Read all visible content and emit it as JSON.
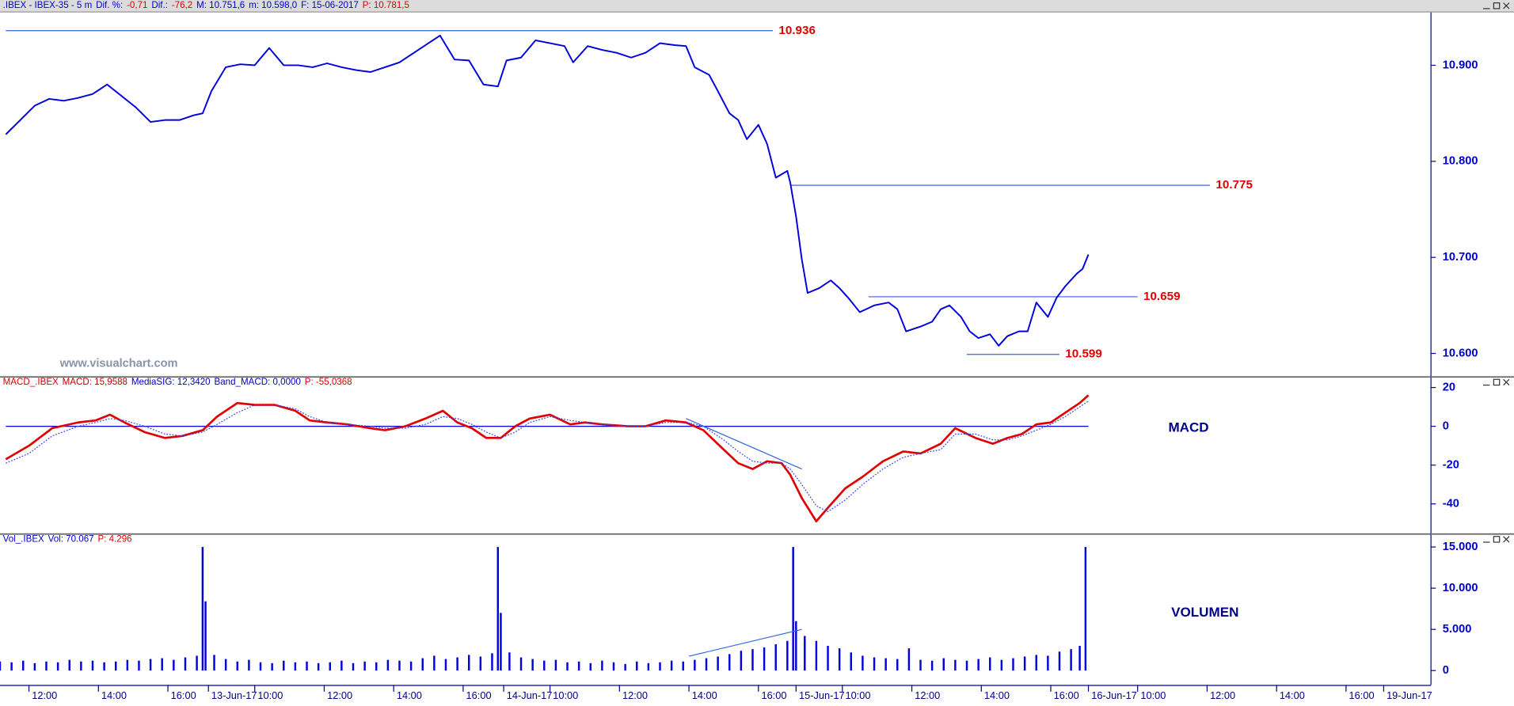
{
  "chart_data": [
    {
      "type": "line",
      "header": [
        {
          "text": ".IBEX - IBEX-35 - 5 m",
          "color": "#0000cc"
        },
        {
          "text": "Dif. %:",
          "color": "#0000cc"
        },
        {
          "text": "-0,71",
          "color": "#e00000"
        },
        {
          "text": "Dif.:",
          "color": "#0000cc"
        },
        {
          "text": "-76,2",
          "color": "#e00000"
        },
        {
          "text": "M: 10.751,6",
          "color": "#0000cc"
        },
        {
          "text": "m: 10.598,0",
          "color": "#0000cc"
        },
        {
          "text": "F: 15-06-2017",
          "color": "#0000cc"
        },
        {
          "text": "P: 10.781,5",
          "color": "#e00000"
        }
      ],
      "watermark": "www.visualchart.com",
      "xlim": [
        0,
        493
      ],
      "ylim": [
        10577,
        10955
      ],
      "yticks": [
        {
          "value": 10600,
          "label": "10.600"
        },
        {
          "value": 10700,
          "label": "10.700"
        },
        {
          "value": 10800,
          "label": "10.800"
        },
        {
          "value": 10900,
          "label": "10.900"
        }
      ],
      "x": [
        2,
        7,
        12,
        17,
        22,
        27,
        32,
        37,
        42,
        47,
        52,
        57,
        62,
        67,
        70,
        73,
        78,
        83,
        88,
        93,
        98,
        103,
        108,
        113,
        118,
        123,
        128,
        133,
        138,
        143,
        148,
        152,
        157,
        162,
        167,
        172,
        175,
        180,
        185,
        190,
        195,
        198,
        203,
        208,
        213,
        218,
        223,
        228,
        233,
        237,
        240,
        245,
        248,
        252,
        255,
        258,
        262,
        265,
        268,
        272,
        273,
        275,
        277,
        279,
        283,
        287,
        290,
        293,
        297,
        302,
        307,
        310,
        313,
        318,
        322,
        325,
        328,
        332,
        335,
        338,
        342,
        345,
        348,
        352,
        355,
        358,
        362,
        365,
        368,
        372,
        374,
        376
      ],
      "series": [
        {
          "color": "#0000dd",
          "values": [
            10828,
            10843,
            10858,
            10865,
            10863,
            10866,
            10870,
            10880,
            10868,
            10856,
            10841,
            10843,
            10843,
            10848,
            10850,
            10873,
            10898,
            10901,
            10900,
            10918,
            10900,
            10900,
            10898,
            10902,
            10898,
            10895,
            10893,
            10898,
            10903,
            10913,
            10923,
            10931,
            10906,
            10905,
            10880,
            10878,
            10905,
            10908,
            10926,
            10923,
            10920,
            10903,
            10920,
            10916,
            10913,
            10908,
            10913,
            10923,
            10921,
            10920,
            10898,
            10890,
            10873,
            10850,
            10843,
            10823,
            10838,
            10818,
            10783,
            10790,
            10778,
            10743,
            10698,
            10663,
            10668,
            10676,
            10668,
            10658,
            10643,
            10650,
            10653,
            10646,
            10623,
            10628,
            10633,
            10646,
            10650,
            10638,
            10623,
            10616,
            10620,
            10608,
            10618,
            10623,
            10623,
            10653,
            10638,
            10658,
            10670,
            10683,
            10688,
            10703
          ]
        }
      ],
      "levels": [
        {
          "value": 10936,
          "label": "10.936",
          "x": [
            2,
            267
          ]
        },
        {
          "value": 10775,
          "label": "10.775",
          "x": [
            273,
            418
          ]
        },
        {
          "value": 10659,
          "label": "10.659",
          "x": [
            300,
            393
          ]
        },
        {
          "value": 10599,
          "label": "10.599",
          "x": [
            334,
            366
          ]
        }
      ],
      "level_color": "#3366dd"
    },
    {
      "type": "macd",
      "header": [
        {
          "text": "MACD_.IBEX",
          "color": "#e00000"
        },
        {
          "text": "MACD: 15,9588",
          "color": "#cc0000"
        },
        {
          "text": "MediaSIG: 12,3420",
          "color": "#0000cc"
        },
        {
          "text": "Band_MACD: 0,0000",
          "color": "#0000cc"
        },
        {
          "text": "P: -55,0368",
          "color": "#e00000"
        }
      ],
      "label": "MACD",
      "xlim": [
        0,
        493
      ],
      "ylim": [
        -55.3,
        24.7
      ],
      "yticks": [
        20,
        0,
        -20,
        -40
      ],
      "reference_line": 0,
      "reference_x": [
        2,
        376
      ],
      "x": [
        2,
        10,
        18,
        27,
        33,
        38,
        43,
        50,
        57,
        63,
        70,
        75,
        82,
        88,
        95,
        102,
        107,
        113,
        120,
        128,
        133,
        140,
        147,
        153,
        158,
        163,
        168,
        173,
        178,
        183,
        190,
        197,
        202,
        208,
        217,
        223,
        230,
        237,
        243,
        250,
        255,
        260,
        265,
        270,
        273,
        277,
        282,
        286,
        292,
        298,
        305,
        312,
        318,
        325,
        330,
        337,
        343,
        348,
        353,
        358,
        363,
        368,
        373,
        376
      ],
      "series": [
        {
          "color": "#e00000",
          "style": "solid",
          "values": [
            -17,
            -10,
            -1,
            2,
            3,
            6,
            2,
            -3,
            -6,
            -5,
            -2,
            5,
            12,
            11,
            11,
            8,
            3,
            2,
            1,
            -1,
            -2,
            0,
            4,
            8,
            2,
            -1,
            -6,
            -6,
            0,
            4,
            6,
            1,
            2,
            1,
            0,
            0,
            3,
            2,
            -2,
            -12,
            -19,
            -22,
            -18,
            -19,
            -25,
            -37,
            -49,
            -42,
            -32,
            -26,
            -18,
            -13,
            -14,
            -9,
            -1,
            -6,
            -9,
            -6,
            -4,
            1,
            2,
            7,
            12,
            16
          ]
        },
        {
          "color": "#3344ff",
          "style": "dotted",
          "values": [
            -19,
            -14,
            -5,
            0,
            2,
            4,
            3,
            0,
            -4,
            -5,
            -3,
            1,
            7,
            11,
            11,
            9,
            5,
            2,
            1,
            0,
            -1,
            -1,
            1,
            5,
            4,
            1,
            -3,
            -6,
            -3,
            2,
            5,
            3,
            2,
            1,
            0,
            0,
            2,
            2,
            0,
            -7,
            -13,
            -18,
            -19,
            -19,
            -22,
            -30,
            -41,
            -44,
            -38,
            -30,
            -22,
            -16,
            -14,
            -12,
            -4,
            -4,
            -7,
            -7,
            -5,
            -2,
            1,
            5,
            10,
            13
          ]
        }
      ],
      "trendline": {
        "x": [
          237,
          277
        ],
        "y": [
          4,
          -22
        ]
      }
    },
    {
      "type": "bar",
      "header": [
        {
          "text": "Vol_.IBEX",
          "color": "#0000cc"
        },
        {
          "text": "Vol: 70.067",
          "color": "#0000cc"
        },
        {
          "text": "P: 4.296",
          "color": "#e00000"
        }
      ],
      "label": "VOLUMEN",
      "color": "#0000dd",
      "xlim": [
        0,
        493
      ],
      "ylim": [
        -1744,
        16395
      ],
      "yticks": [
        {
          "value": 0,
          "label": "0"
        },
        {
          "value": 5000,
          "label": "5.000"
        },
        {
          "value": 10000,
          "label": "10.000"
        },
        {
          "value": 15000,
          "label": "15.000"
        }
      ],
      "xticks": [
        {
          "value": 10,
          "label": "12:00"
        },
        {
          "value": 34,
          "label": "14:00"
        },
        {
          "value": 58,
          "label": "16:00"
        },
        {
          "value": 72,
          "label": "13-Jun-17"
        },
        {
          "value": 88,
          "label": "10:00"
        },
        {
          "value": 112,
          "label": "12:00"
        },
        {
          "value": 136,
          "label": "14:00"
        },
        {
          "value": 160,
          "label": "16:00"
        },
        {
          "value": 174,
          "label": "14-Jun-17"
        },
        {
          "value": 190,
          "label": "10:00"
        },
        {
          "value": 214,
          "label": "12:00"
        },
        {
          "value": 238,
          "label": "14:00"
        },
        {
          "value": 262,
          "label": "16:00"
        },
        {
          "value": 275,
          "label": "15-Jun-17"
        },
        {
          "value": 291,
          "label": "10:00"
        },
        {
          "value": 315,
          "label": "12:00"
        },
        {
          "value": 339,
          "label": "14:00"
        },
        {
          "value": 363,
          "label": "16:00"
        },
        {
          "value": 376,
          "label": "16-Jun-17"
        },
        {
          "value": 393,
          "label": "10:00"
        },
        {
          "value": 417,
          "label": "12:00"
        },
        {
          "value": 441,
          "label": "14:00"
        },
        {
          "value": 465,
          "label": "16:00"
        },
        {
          "value": 478,
          "label": "19-Jun-17"
        }
      ],
      "x": [
        0,
        4,
        8,
        12,
        16,
        20,
        24,
        28,
        32,
        36,
        40,
        44,
        48,
        52,
        56,
        60,
        64,
        68,
        70,
        71,
        74,
        78,
        82,
        86,
        90,
        94,
        98,
        102,
        106,
        110,
        114,
        118,
        122,
        126,
        130,
        134,
        138,
        142,
        146,
        150,
        154,
        158,
        162,
        166,
        170,
        172,
        173,
        176,
        180,
        184,
        188,
        192,
        196,
        200,
        204,
        208,
        212,
        216,
        220,
        224,
        228,
        232,
        236,
        240,
        244,
        248,
        252,
        256,
        260,
        264,
        268,
        272,
        274,
        275,
        278,
        282,
        286,
        290,
        294,
        298,
        302,
        306,
        310,
        314,
        318,
        322,
        326,
        330,
        334,
        338,
        342,
        346,
        350,
        354,
        358,
        362,
        366,
        370,
        373,
        375
      ],
      "values": [
        1100,
        1000,
        1200,
        900,
        1100,
        1000,
        1300,
        1100,
        1200,
        1000,
        1100,
        1300,
        1200,
        1400,
        1500,
        1300,
        1600,
        1800,
        15000,
        8400,
        1900,
        1400,
        1100,
        1300,
        1000,
        900,
        1200,
        1000,
        1100,
        900,
        1000,
        1200,
        900,
        1100,
        1000,
        1300,
        1200,
        1100,
        1500,
        1800,
        1400,
        1600,
        1900,
        1700,
        2100,
        15000,
        7000,
        2200,
        1600,
        1400,
        1200,
        1300,
        1000,
        1100,
        900,
        1200,
        1000,
        800,
        1100,
        900,
        1000,
        1200,
        1100,
        1300,
        1500,
        1700,
        2000,
        2400,
        2600,
        2800,
        3200,
        3600,
        15000,
        6000,
        4200,
        3600,
        3000,
        2700,
        2200,
        1800,
        1600,
        1500,
        1400,
        2700,
        1300,
        1200,
        1500,
        1300,
        1200,
        1400,
        1600,
        1300,
        1500,
        1700,
        1900,
        1800,
        2300,
        2600,
        3000,
        15000
      ],
      "trendline": {
        "x": [
          238,
          277
        ],
        "y": [
          1744,
          5000
        ]
      }
    }
  ]
}
